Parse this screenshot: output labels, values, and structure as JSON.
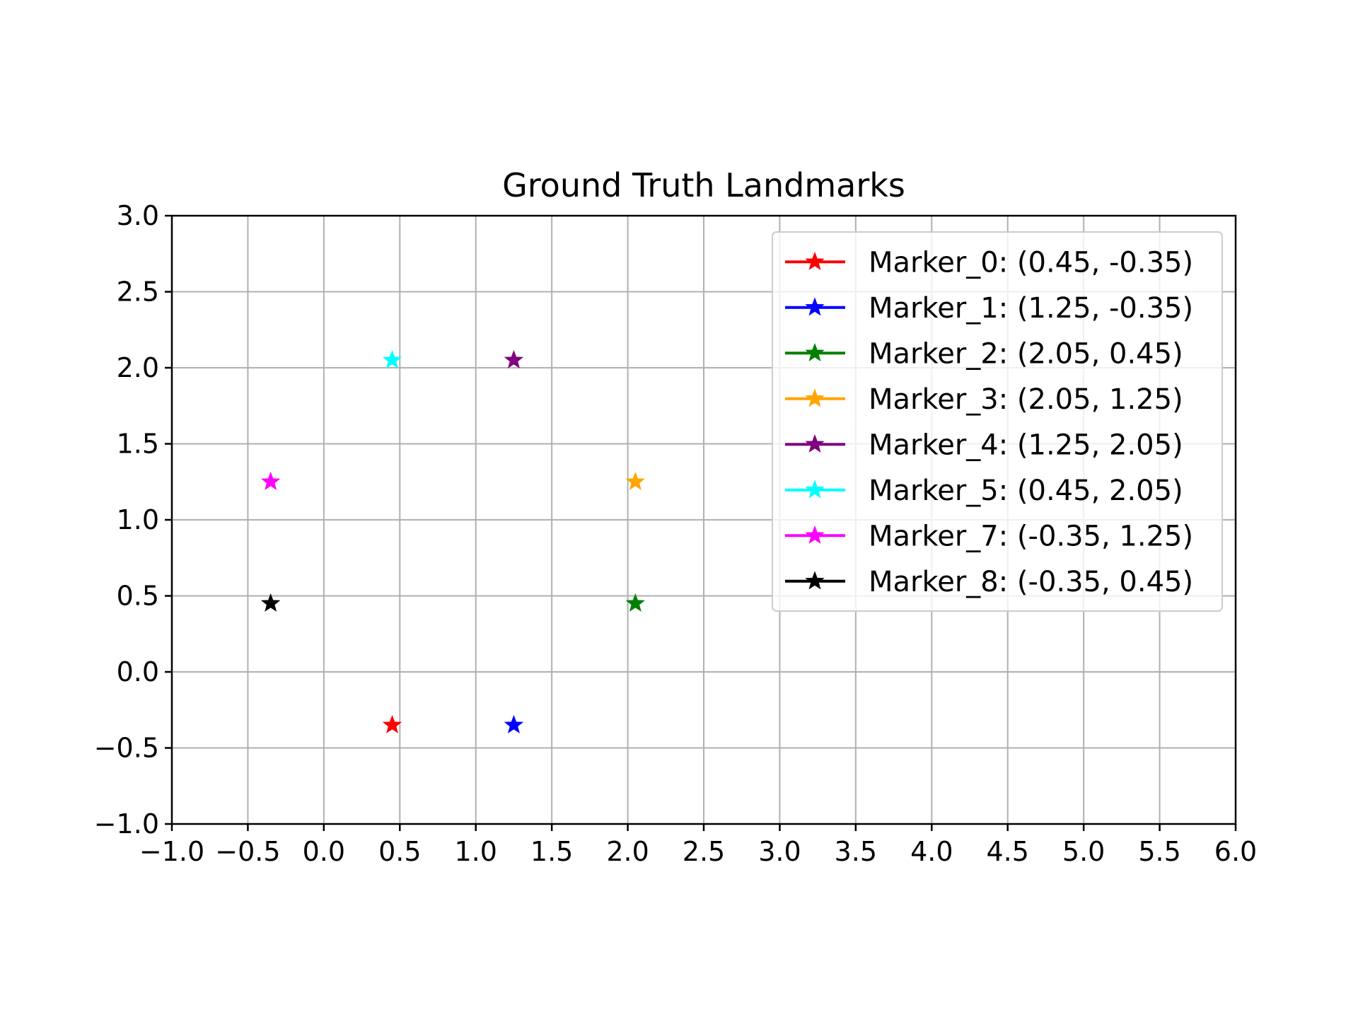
{
  "chart_data": {
    "type": "scatter",
    "title": "Ground Truth Landmarks",
    "xlabel": "",
    "ylabel": "",
    "xlim": [
      -1.0,
      6.0
    ],
    "ylim": [
      -1.0,
      3.0
    ],
    "x_ticks": [
      -1.0,
      -0.5,
      0.0,
      0.5,
      1.0,
      1.5,
      2.0,
      2.5,
      3.0,
      3.5,
      4.0,
      4.5,
      5.0,
      5.5,
      6.0
    ],
    "y_ticks": [
      -1.0,
      -0.5,
      0.0,
      0.5,
      1.0,
      1.5,
      2.0,
      2.5,
      3.0
    ],
    "x_tick_labels": [
      "−1.0",
      "−0.5",
      "0.0",
      "0.5",
      "1.0",
      "1.5",
      "2.0",
      "2.5",
      "3.0",
      "3.5",
      "4.0",
      "4.5",
      "5.0",
      "5.5",
      "6.0"
    ],
    "y_tick_labels": [
      "−1.0",
      "−0.5",
      "0.0",
      "0.5",
      "1.0",
      "1.5",
      "2.0",
      "2.5",
      "3.0"
    ],
    "grid": true,
    "legend_position": "top-right",
    "marker": "star",
    "series": [
      {
        "name": "Marker_0: (0.45, -0.35)",
        "x": 0.45,
        "y": -0.35,
        "color": "#ff0000"
      },
      {
        "name": "Marker_1: (1.25, -0.35)",
        "x": 1.25,
        "y": -0.35,
        "color": "#0000ff"
      },
      {
        "name": "Marker_2: (2.05, 0.45)",
        "x": 2.05,
        "y": 0.45,
        "color": "#008000"
      },
      {
        "name": "Marker_3: (2.05, 1.25)",
        "x": 2.05,
        "y": 1.25,
        "color": "#ffa500"
      },
      {
        "name": "Marker_4: (1.25, 2.05)",
        "x": 1.25,
        "y": 2.05,
        "color": "#800080"
      },
      {
        "name": "Marker_5: (0.45, 2.05)",
        "x": 0.45,
        "y": 2.05,
        "color": "#00ffff"
      },
      {
        "name": "Marker_7: (-0.35, 1.25)",
        "x": -0.35,
        "y": 1.25,
        "color": "#ff00ff"
      },
      {
        "name": "Marker_8: (-0.35, 0.45)",
        "x": -0.35,
        "y": 0.45,
        "color": "#000000"
      }
    ]
  }
}
